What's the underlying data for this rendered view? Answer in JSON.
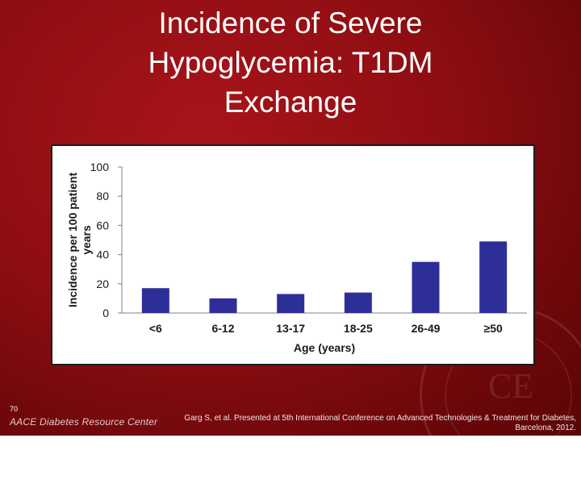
{
  "slide": {
    "title_lines": [
      "Incidence of Severe",
      "Hypoglycemia: T1DM",
      "Exchange"
    ],
    "page_number": "70",
    "brand": "AACE Diabetes Resource Center",
    "seal_text": "CE",
    "citation_lines": [
      "Garg S, et al. Presented at 5th International Conference on Advanced Technologies & Treatment for Diabetes,",
      "Barcelona, 2012."
    ],
    "background_color": "#8e0e12"
  },
  "chart_data": {
    "type": "bar",
    "title": "",
    "xlabel": "Age (years)",
    "ylabel_lines": [
      "Incidence per 100 patient",
      "years"
    ],
    "categories": [
      "<6",
      "6-12",
      "13-17",
      "18-25",
      "26-49",
      "≥50"
    ],
    "values": [
      17,
      10,
      13,
      14,
      35,
      49
    ],
    "ylim": [
      0,
      100
    ],
    "yticks": [
      0,
      20,
      40,
      60,
      80,
      100
    ],
    "grid": false,
    "legend": "none",
    "bar_color": "#2e2e99"
  }
}
